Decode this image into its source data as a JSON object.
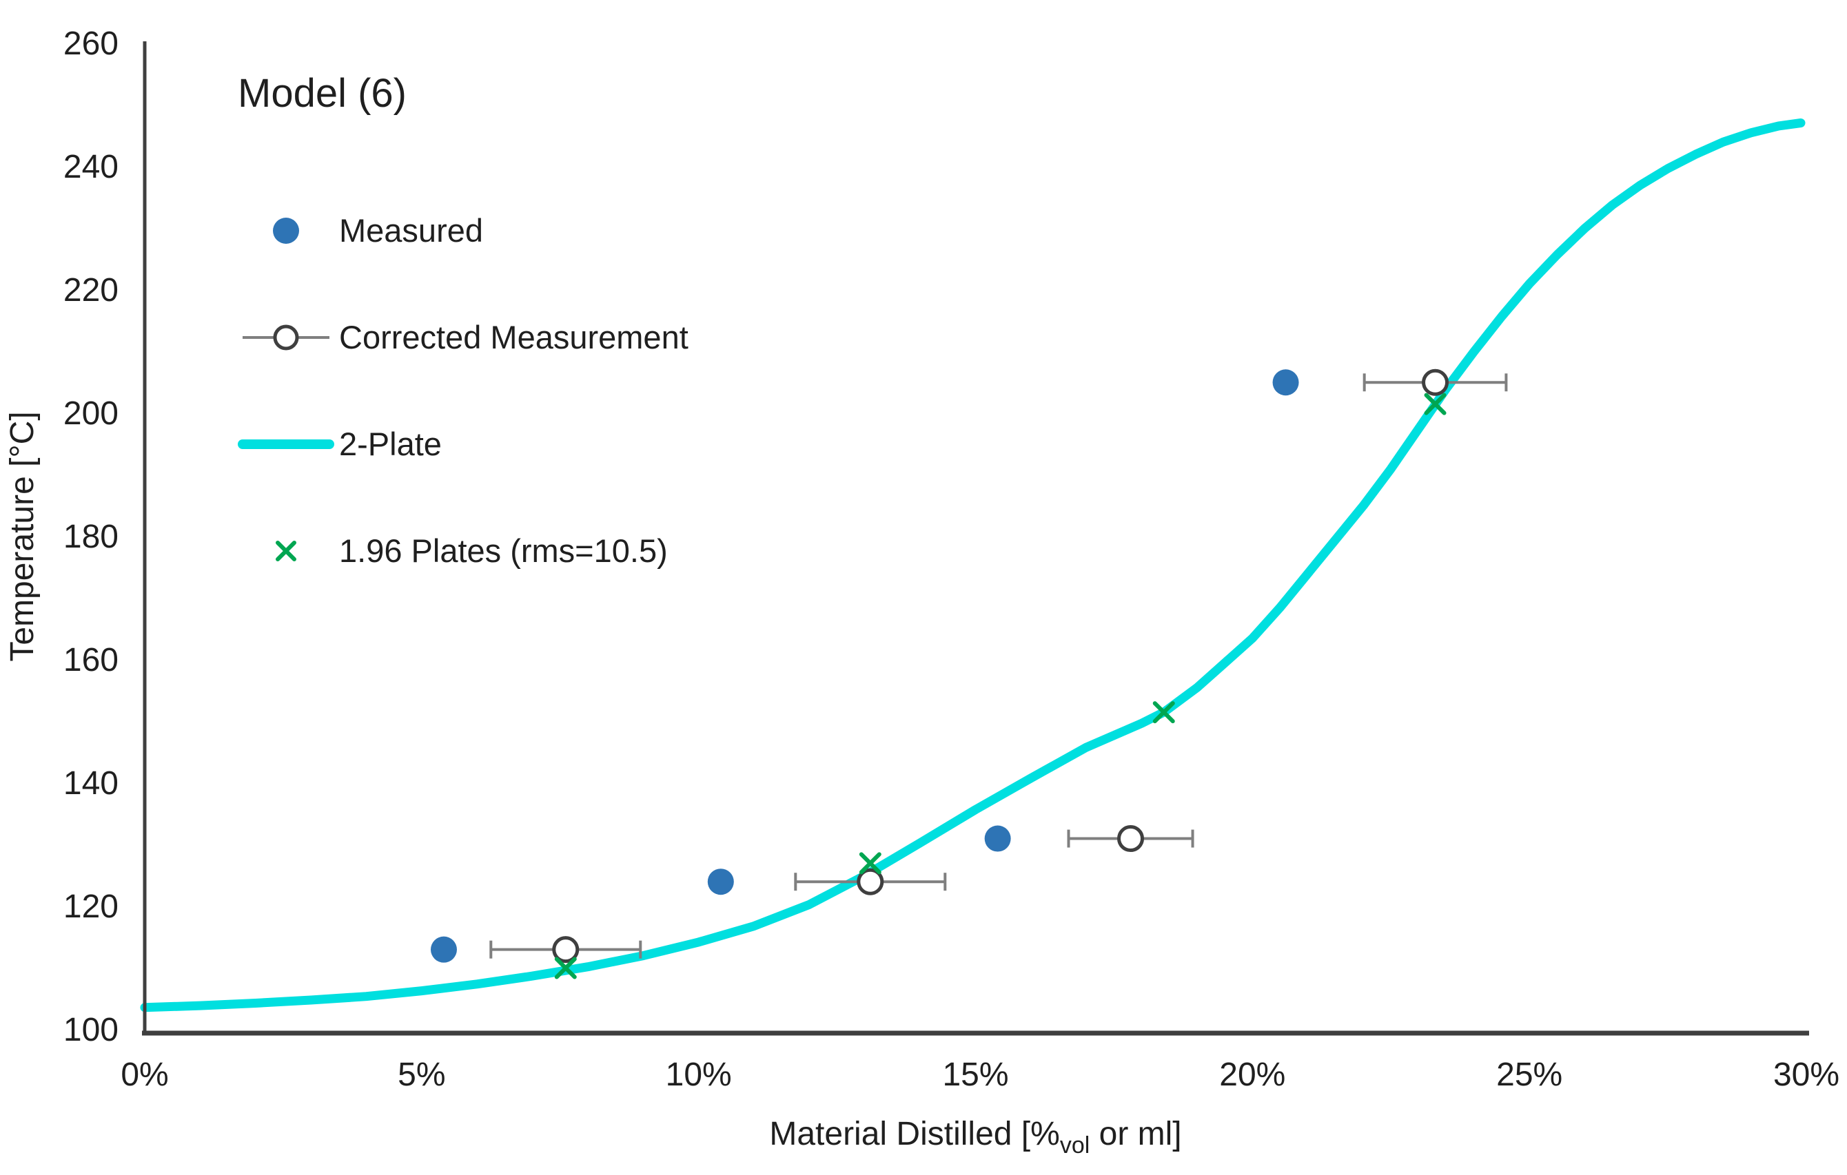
{
  "page": {
    "background": "#ffffff"
  },
  "chart_data": {
    "type": "scatter",
    "title": "Model (6)",
    "ylabel": "Temperature [°C]",
    "xlabel_parts": {
      "pre": "Material Distilled [%",
      "sub": "vol",
      "post": " or ml]"
    },
    "x_axis": {
      "min": 0,
      "max": 30,
      "tick_step": 5,
      "unit": "percent",
      "tick_values": [
        0,
        5,
        10,
        15,
        20,
        25,
        30
      ],
      "tick_labels": [
        "0%",
        "5%",
        "10%",
        "15%",
        "20%",
        "25%",
        "30%"
      ]
    },
    "y_axis": {
      "min": 100,
      "max": 260,
      "tick_step": 20,
      "tick_values": [
        100,
        120,
        140,
        160,
        180,
        200,
        220,
        240,
        260
      ],
      "tick_labels": [
        "100",
        "120",
        "140",
        "160",
        "180",
        "200",
        "220",
        "240",
        "260"
      ]
    },
    "grid": false,
    "legend_position": "upper-left-inside",
    "colors": {
      "measured_blue": "#2E74B5",
      "corrected_stroke": "#3F3F3F",
      "error_bar_gray": "#7F7F7F",
      "plate_cyan": "#00DFDF",
      "plates_green": "#00A651",
      "axis_line": "#3F3F3F",
      "text": "#1f1f1f"
    },
    "series": [
      {
        "name": "Measured",
        "type": "scatter",
        "marker": "filled-circle",
        "color": "#2E74B5",
        "points": [
          [
            5.4,
            113
          ],
          [
            10.4,
            124
          ],
          [
            15.4,
            131
          ],
          [
            20.6,
            205
          ]
        ]
      },
      {
        "name": "Corrected Measurement",
        "type": "scatter",
        "marker": "open-circle",
        "color": "#3F3F3F",
        "error_bar_color": "#7F7F7F",
        "points": [
          [
            7.6,
            113,
            1.35
          ],
          [
            13.1,
            124,
            1.35
          ],
          [
            17.8,
            131,
            1.12
          ],
          [
            23.3,
            205,
            1.28
          ]
        ]
      },
      {
        "name": "2-Plate",
        "type": "line",
        "color": "#00DFDF",
        "stroke_width": 13,
        "points": [
          [
            0,
            103.6
          ],
          [
            1,
            103.9
          ],
          [
            2,
            104.3
          ],
          [
            3,
            104.8
          ],
          [
            4,
            105.4
          ],
          [
            5,
            106.3
          ],
          [
            6,
            107.4
          ],
          [
            7,
            108.7
          ],
          [
            8,
            110.2
          ],
          [
            9,
            112.0
          ],
          [
            10,
            114.2
          ],
          [
            11,
            116.8
          ],
          [
            12,
            120.3
          ],
          [
            13,
            125.0
          ],
          [
            14,
            130.3
          ],
          [
            15,
            135.7
          ],
          [
            16,
            140.8
          ],
          [
            17,
            145.8
          ],
          [
            18,
            149.7
          ],
          [
            18.4,
            151.5
          ],
          [
            19,
            155.5
          ],
          [
            19.5,
            159.5
          ],
          [
            20,
            163.5
          ],
          [
            20.5,
            168.5
          ],
          [
            21,
            174.0
          ],
          [
            21.5,
            179.5
          ],
          [
            22,
            185.0
          ],
          [
            22.5,
            191.0
          ],
          [
            23,
            197.5
          ],
          [
            23.5,
            204.0
          ],
          [
            24,
            210.0
          ],
          [
            24.5,
            215.7
          ],
          [
            25,
            221.0
          ],
          [
            25.5,
            225.7
          ],
          [
            26,
            230.0
          ],
          [
            26.5,
            233.8
          ],
          [
            27,
            237.0
          ],
          [
            27.5,
            239.7
          ],
          [
            28,
            242.0
          ],
          [
            28.5,
            244.0
          ],
          [
            29,
            245.5
          ],
          [
            29.5,
            246.6
          ],
          [
            29.9,
            247.1
          ]
        ]
      },
      {
        "name": "1.96 Plates (rms=10.5)",
        "type": "scatter",
        "marker": "x",
        "color": "#00A651",
        "points": [
          [
            7.6,
            110
          ],
          [
            13.1,
            127
          ],
          [
            18.4,
            151.5
          ],
          [
            23.3,
            201.5
          ]
        ]
      }
    ]
  }
}
